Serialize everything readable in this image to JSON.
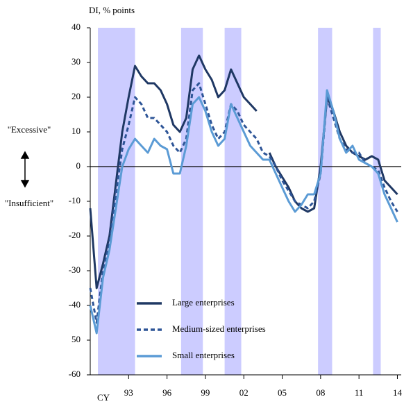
{
  "chart_data": {
    "type": "line",
    "title": "DI, % points",
    "x_label": "CY",
    "annotations": [
      "\"Excessive\"",
      "\"Insufficient\""
    ],
    "x": [
      1990.0,
      1990.5,
      1991.0,
      1991.5,
      1992.0,
      1992.5,
      1993.0,
      1993.5,
      1994.0,
      1994.5,
      1995.0,
      1995.5,
      1996.0,
      1996.5,
      1997.0,
      1997.5,
      1998.0,
      1998.5,
      1999.0,
      1999.5,
      2000.0,
      2000.5,
      2001.0,
      2001.5,
      2002.0,
      2002.5,
      2003.0,
      2003.5,
      2004.0,
      2004.5,
      2005.0,
      2005.5,
      2006.0,
      2006.5,
      2007.0,
      2007.5,
      2008.0,
      2008.5,
      2009.0,
      2009.5,
      2010.0,
      2010.5,
      2011.0,
      2011.5,
      2012.0,
      2012.5,
      2013.0,
      2013.5,
      2014.0
    ],
    "series": [
      {
        "name": "Large enterprises",
        "color": "#1f3864",
        "dash": "solid",
        "values": [
          -12,
          -35,
          -28,
          -20,
          -5,
          10,
          20,
          29,
          26,
          24,
          24,
          22,
          18,
          12,
          10,
          14,
          28,
          32,
          28,
          25,
          20,
          22,
          28,
          24,
          20,
          18,
          16,
          null,
          4,
          0,
          -3,
          -6,
          -10,
          -12,
          -13,
          -12,
          0,
          20,
          16,
          10,
          6,
          4,
          3,
          2,
          3,
          2,
          -4,
          -6,
          -8
        ]
      },
      {
        "name": "Medium-sized enterprises",
        "color": "#2e5597",
        "dash": "dashed",
        "values": [
          -35,
          -45,
          -30,
          -22,
          -8,
          5,
          12,
          20,
          18,
          14,
          14,
          12,
          10,
          6,
          4,
          8,
          22,
          24,
          18,
          12,
          8,
          10,
          18,
          16,
          12,
          10,
          8,
          4,
          3,
          0,
          -4,
          -7,
          -10,
          -11,
          -12,
          -10,
          -2,
          20,
          14,
          8,
          5,
          4,
          4,
          1,
          0,
          -1,
          -6,
          -10,
          -13
        ]
      },
      {
        "name": "Small enterprises",
        "color": "#5b9bd5",
        "dash": "solid",
        "values": [
          -40,
          -48,
          -32,
          -24,
          -12,
          0,
          5,
          8,
          6,
          4,
          8,
          6,
          5,
          -2,
          -2,
          6,
          18,
          20,
          16,
          10,
          6,
          8,
          18,
          14,
          10,
          6,
          4,
          2,
          2,
          -2,
          -6,
          -10,
          -13,
          -11,
          -8,
          -8,
          -2,
          22,
          16,
          8,
          4,
          6,
          2,
          1,
          0,
          -2,
          -8,
          -12,
          -16
        ]
      }
    ],
    "shaded_periods": [
      [
        1990.6,
        1993.5
      ],
      [
        1997.1,
        1998.8
      ],
      [
        2000.5,
        2001.8
      ],
      [
        2007.8,
        2008.9
      ],
      [
        2012.1,
        2012.7
      ]
    ],
    "shade_color": "#ccccff",
    "xlim": [
      1990.0,
      2014.3
    ],
    "xticks": [
      {
        "value": 1993,
        "label": "93"
      },
      {
        "value": 1996,
        "label": "96"
      },
      {
        "value": 1999,
        "label": "99"
      },
      {
        "value": 2002,
        "label": "02"
      },
      {
        "value": 2005,
        "label": "05"
      },
      {
        "value": 2008,
        "label": "08"
      },
      {
        "value": 2011,
        "label": "11"
      },
      {
        "value": 2014,
        "label": "14"
      }
    ],
    "ylim": [
      -60,
      40
    ],
    "yticks": [
      -60,
      {
        "value": -50,
        "label": "50"
      },
      -40,
      -30,
      -20,
      -10,
      0,
      10,
      20,
      30,
      40
    ],
    "grid": false
  }
}
